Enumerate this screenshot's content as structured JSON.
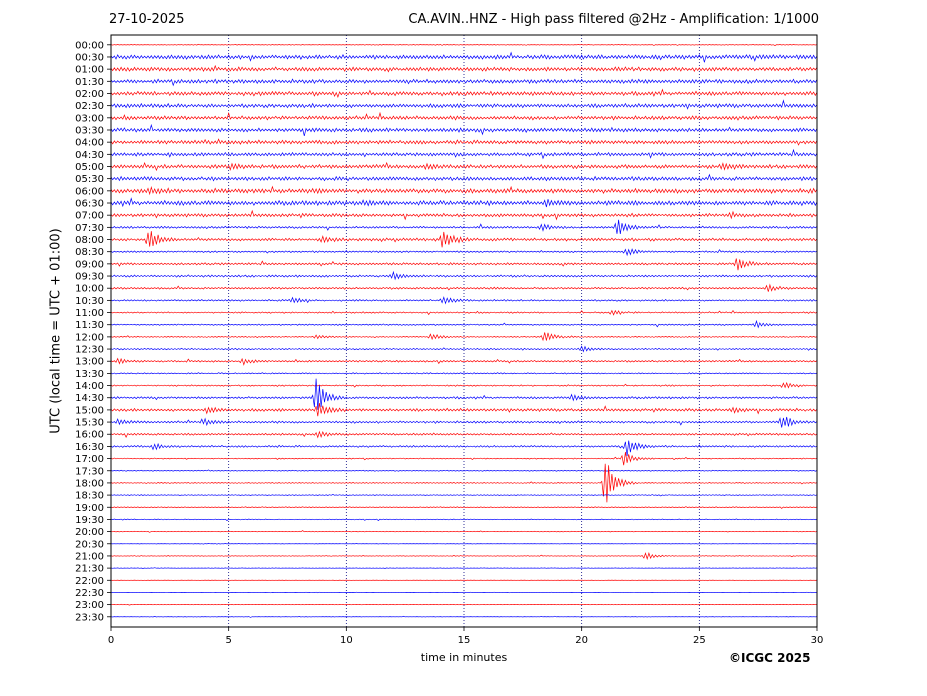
{
  "header": {
    "date": "27-10-2025",
    "title": "CA.AVIN..HNZ - High pass filtered @2Hz - Amplification: 1/1000"
  },
  "footer": {
    "copyright": "©ICGC 2025"
  },
  "chart_data": {
    "type": "line",
    "subtype": "helicorder",
    "xlabel": "time in minutes",
    "ylabel": "UTC (local time = UTC + 01:00)",
    "xlim": [
      0,
      30
    ],
    "xticks": [
      0,
      5,
      10,
      15,
      20,
      25,
      30
    ],
    "grid": "vertical dotted lines at every 5 minutes",
    "row_colors": [
      "#ff0000",
      "#0000ff"
    ],
    "rows": [
      "00:00",
      "00:30",
      "01:00",
      "01:30",
      "02:00",
      "02:30",
      "03:00",
      "03:30",
      "04:00",
      "04:30",
      "05:00",
      "05:30",
      "06:00",
      "06:30",
      "07:00",
      "07:30",
      "08:00",
      "08:30",
      "09:00",
      "09:30",
      "10:00",
      "10:30",
      "11:00",
      "11:30",
      "12:00",
      "12:30",
      "13:00",
      "13:30",
      "14:00",
      "14:30",
      "15:00",
      "15:30",
      "16:00",
      "16:30",
      "17:00",
      "17:30",
      "18:00",
      "18:30",
      "19:00",
      "19:30",
      "20:00",
      "20:30",
      "21:00",
      "21:30",
      "22:00",
      "22:30",
      "23:00",
      "23:30"
    ],
    "background_level": [
      0.3,
      1.9,
      1.8,
      1.8,
      1.8,
      1.8,
      1.7,
      1.8,
      1.7,
      1.6,
      1.7,
      1.8,
      2.1,
      2.1,
      1.5,
      1.0,
      1.3,
      0.8,
      1.0,
      1.0,
      0.9,
      0.8,
      0.7,
      0.6,
      0.5,
      0.7,
      0.8,
      0.6,
      0.7,
      1.0,
      1.3,
      1.0,
      0.9,
      0.9,
      0.5,
      0.4,
      0.5,
      0.4,
      0.4,
      0.4,
      0.3,
      0.2,
      0.3,
      0.2,
      0.2,
      0.2,
      0.2,
      0.2
    ],
    "events": [
      {
        "row": "05:00",
        "minute": 5.1,
        "amplitude": 2.5
      },
      {
        "row": "05:00",
        "minute": 13.4,
        "amplitude": 2.5
      },
      {
        "row": "05:00",
        "minute": 26.0,
        "amplitude": 3
      },
      {
        "row": "06:00",
        "minute": 1.6,
        "amplitude": 3
      },
      {
        "row": "06:30",
        "minute": 10.8,
        "amplitude": 2.5
      },
      {
        "row": "06:30",
        "minute": 18.5,
        "amplitude": 3
      },
      {
        "row": "07:00",
        "minute": 26.3,
        "amplitude": 2.5
      },
      {
        "row": "07:30",
        "minute": 21.5,
        "amplitude": 9
      },
      {
        "row": "07:30",
        "minute": 18.3,
        "amplitude": 3
      },
      {
        "row": "08:00",
        "minute": 1.6,
        "amplitude": 11
      },
      {
        "row": "08:00",
        "minute": 14.1,
        "amplitude": 11
      },
      {
        "row": "08:00",
        "minute": 9.0,
        "amplitude": 3
      },
      {
        "row": "08:30",
        "minute": 21.9,
        "amplitude": 4
      },
      {
        "row": "09:00",
        "minute": 26.6,
        "amplitude": 7
      },
      {
        "row": "09:30",
        "minute": 12.0,
        "amplitude": 4
      },
      {
        "row": "10:00",
        "minute": 27.9,
        "amplitude": 3.5
      },
      {
        "row": "10:30",
        "minute": 14.1,
        "amplitude": 4
      },
      {
        "row": "10:30",
        "minute": 7.7,
        "amplitude": 2.5
      },
      {
        "row": "11:00",
        "minute": 21.3,
        "amplitude": 2.5
      },
      {
        "row": "11:30",
        "minute": 27.4,
        "amplitude": 3.5
      },
      {
        "row": "12:00",
        "minute": 13.6,
        "amplitude": 4
      },
      {
        "row": "12:00",
        "minute": 8.7,
        "amplitude": 2.5
      },
      {
        "row": "12:00",
        "minute": 18.4,
        "amplitude": 6
      },
      {
        "row": "12:30",
        "minute": 20.0,
        "amplitude": 3
      },
      {
        "row": "13:00",
        "minute": 0.3,
        "amplitude": 3
      },
      {
        "row": "13:00",
        "minute": 5.6,
        "amplitude": 3
      },
      {
        "row": "14:00",
        "minute": 28.6,
        "amplitude": 3.5
      },
      {
        "row": "14:30",
        "minute": 8.7,
        "amplitude": 20
      },
      {
        "row": "14:30",
        "minute": 19.6,
        "amplitude": 3
      },
      {
        "row": "15:00",
        "minute": 8.8,
        "amplitude": 8
      },
      {
        "row": "15:00",
        "minute": 4.1,
        "amplitude": 3
      },
      {
        "row": "15:00",
        "minute": 26.4,
        "amplitude": 3
      },
      {
        "row": "15:30",
        "minute": 28.5,
        "amplitude": 9
      },
      {
        "row": "15:30",
        "minute": 0.3,
        "amplitude": 3
      },
      {
        "row": "15:30",
        "minute": 4.0,
        "amplitude": 3
      },
      {
        "row": "16:00",
        "minute": 8.8,
        "amplitude": 4
      },
      {
        "row": "16:30",
        "minute": 21.9,
        "amplitude": 10
      },
      {
        "row": "16:30",
        "minute": 1.8,
        "amplitude": 3
      },
      {
        "row": "17:00",
        "minute": 21.8,
        "amplitude": 8
      },
      {
        "row": "18:00",
        "minute": 21.0,
        "amplitude": 26
      },
      {
        "row": "21:00",
        "minute": 22.7,
        "amplitude": 4
      }
    ]
  }
}
